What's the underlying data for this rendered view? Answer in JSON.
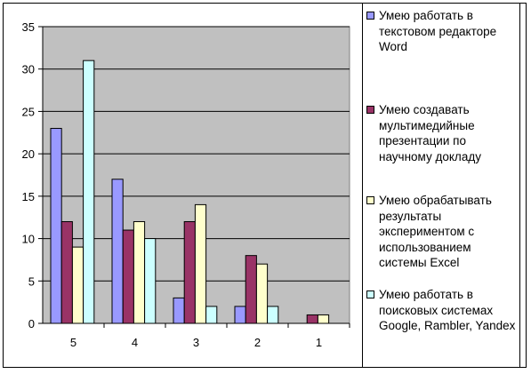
{
  "chart_data": {
    "type": "bar",
    "categories": [
      "5",
      "4",
      "3",
      "2",
      "1"
    ],
    "ylim": [
      0,
      35
    ],
    "yticks": [
      0,
      5,
      10,
      15,
      20,
      25,
      30,
      35
    ],
    "grid": true,
    "legend_position": "right",
    "plot_background": "#c0c0c0",
    "series": [
      {
        "name": "Умею работать в текстовом редакторе Word",
        "color": "#9999ff",
        "values": [
          23,
          17,
          3,
          2,
          0
        ]
      },
      {
        "name": "Умею создавать мультимедийные презентации по научному докладу",
        "color": "#993366",
        "values": [
          12,
          11,
          12,
          8,
          1
        ]
      },
      {
        "name": "Умею обрабатывать результаты экспериментом с использованием системы Excel",
        "color": "#ffffcc",
        "values": [
          9,
          12,
          14,
          7,
          1
        ]
      },
      {
        "name": "Умею работать в поисковых системах Google, Rambler, Yandex",
        "color": "#ccffff",
        "values": [
          31,
          10,
          2,
          2,
          0
        ]
      }
    ]
  }
}
